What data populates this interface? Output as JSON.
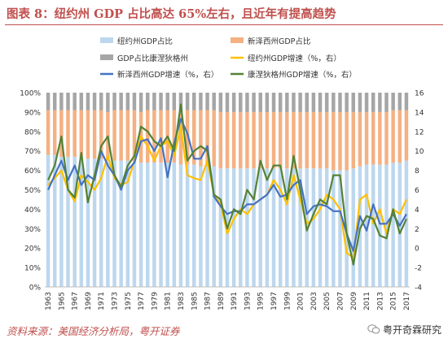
{
  "figure": {
    "title": "图表 8：纽约州 GDP 占比高达 65%左右，且近年有提高趋势",
    "source": "资料来源：美国经济分析局，粤开证券",
    "watermark": "粤开奇霖研究"
  },
  "chart_data": {
    "type": "bar",
    "stacked": true,
    "x": [
      1963,
      1964,
      1965,
      1966,
      1967,
      1968,
      1969,
      1970,
      1971,
      1972,
      1973,
      1974,
      1975,
      1976,
      1977,
      1978,
      1979,
      1980,
      1981,
      1982,
      1983,
      1984,
      1985,
      1986,
      1987,
      1988,
      1989,
      1990,
      1991,
      1992,
      1993,
      1994,
      1995,
      1996,
      1997,
      1998,
      1999,
      2000,
      2001,
      2002,
      2003,
      2004,
      2005,
      2006,
      2007,
      2008,
      2009,
      2010,
      2011,
      2012,
      2013,
      2014,
      2015,
      2016,
      2017
    ],
    "xticks": [
      "1963",
      "1965",
      "1967",
      "1969",
      "1971",
      "1973",
      "1975",
      "1977",
      "1979",
      "1981",
      "1983",
      "1985",
      "1987",
      "1989",
      "1991",
      "1993",
      "1995",
      "1997",
      "1999",
      "2001",
      "2003",
      "2005",
      "2007",
      "2009",
      "2011",
      "2013",
      "2015",
      "2017"
    ],
    "ylim_left": [
      0,
      100
    ],
    "yticks_left": [
      "0%",
      "10%",
      "20%",
      "30%",
      "40%",
      "50%",
      "60%",
      "70%",
      "80%",
      "90%",
      "100%"
    ],
    "ylim_right": [
      -4,
      16
    ],
    "yticks_right": [
      "-4",
      "-2",
      "0",
      "2",
      "4",
      "6",
      "8",
      "10",
      "12",
      "14",
      "16"
    ],
    "legend": [
      "纽约州GDP占比",
      "新泽西州GDP占比",
      "GDP占比康涅狄格州",
      "纽约州GDP增速（%，右）",
      "新泽西州GDP增速（%，右）",
      "康涅狄格州GDP增速（%，右）"
    ],
    "bars": [
      {
        "name": "纽约州GDP占比",
        "color": "#bdd7ee",
        "values": [
          68,
          68,
          67,
          67,
          67,
          67,
          66,
          66,
          66,
          65,
          65,
          65,
          65,
          65,
          64,
          64,
          64,
          64,
          64,
          64,
          63,
          63,
          63,
          62,
          62,
          62,
          61,
          61,
          61,
          61,
          61,
          61,
          61,
          61,
          61,
          61,
          61,
          61,
          61,
          61,
          61,
          61,
          61,
          60,
          60,
          60,
          61,
          62,
          63,
          63,
          63,
          63,
          64,
          64,
          65
        ]
      },
      {
        "name": "新泽西州GDP占比",
        "color": "#f4b183",
        "values": [
          23,
          23,
          24,
          24,
          24,
          24,
          25,
          25,
          25,
          25,
          26,
          26,
          26,
          26,
          26,
          27,
          27,
          27,
          27,
          27,
          28,
          28,
          28,
          29,
          29,
          29,
          29,
          29,
          29,
          29,
          29,
          29,
          29,
          29,
          29,
          29,
          29,
          29,
          29,
          29,
          29,
          29,
          29,
          30,
          30,
          30,
          29,
          28,
          27,
          27,
          27,
          27,
          27,
          27,
          26
        ]
      },
      {
        "name": "GDP占比康涅狄格州",
        "color": "#a6a6a6",
        "values": [
          9,
          9,
          9,
          9,
          9,
          9,
          9,
          9,
          9,
          10,
          9,
          9,
          9,
          9,
          10,
          9,
          9,
          9,
          9,
          9,
          9,
          9,
          9,
          9,
          9,
          9,
          10,
          10,
          10,
          10,
          10,
          10,
          10,
          10,
          10,
          10,
          10,
          10,
          10,
          10,
          10,
          10,
          10,
          10,
          10,
          10,
          10,
          10,
          10,
          10,
          10,
          10,
          9,
          9,
          9
        ]
      }
    ],
    "lines": [
      {
        "name": "纽约州GDP增速（%，右）",
        "color": "#ffc000",
        "values": [
          6.5,
          7.2,
          8.0,
          6.0,
          4.8,
          7.5,
          6.8,
          6.0,
          7.2,
          9.5,
          7.2,
          6.5,
          6.8,
          9.0,
          11.5,
          10.5,
          9.0,
          10.5,
          11.0,
          9.5,
          12.5,
          7.5,
          7.2,
          7.0,
          9.0,
          5.5,
          4.5,
          1.5,
          3.0,
          4.0,
          3.5,
          4.5,
          5.0,
          5.5,
          7.0,
          6.0,
          4.5,
          7.5,
          5.0,
          2.5,
          3.0,
          4.0,
          5.5,
          5.0,
          4.0,
          -0.5,
          -1.0,
          5.0,
          5.5,
          2.5,
          4.0,
          1.5,
          4.0,
          3.5,
          5.0
        ]
      },
      {
        "name": "新泽西州GDP增速（%，右）",
        "color": "#4472c4",
        "values": [
          6.0,
          7.5,
          9.0,
          7.0,
          8.5,
          6.5,
          7.5,
          7.0,
          10.0,
          8.5,
          7.5,
          6.0,
          8.0,
          8.8,
          11.0,
          11.2,
          10.0,
          11.3,
          7.3,
          10.8,
          13.3,
          11.8,
          9.2,
          9.2,
          10.5,
          5.3,
          4.3,
          3.5,
          3.8,
          3.8,
          4.5,
          4.5,
          5.0,
          5.5,
          6.5,
          5.3,
          5.5,
          6.5,
          7.0,
          3.5,
          4.3,
          4.5,
          4.3,
          3.8,
          3.8,
          1.5,
          -0.3,
          3.3,
          1.8,
          4.5,
          2.5,
          2.5,
          3.5,
          2.3,
          3.5
        ]
      },
      {
        "name": "康涅狄格州GDP增速（%，右）",
        "color": "#548235",
        "values": [
          7.0,
          8.5,
          11.5,
          6.0,
          5.2,
          9.8,
          4.7,
          7.5,
          10.5,
          11.5,
          7.5,
          6.3,
          8.5,
          9.5,
          12.5,
          12.0,
          11.0,
          10.5,
          11.5,
          10.0,
          14.8,
          9.0,
          10.0,
          10.5,
          10.0,
          5.5,
          5.0,
          2.0,
          4.0,
          3.5,
          6.0,
          5.0,
          9.0,
          7.0,
          8.5,
          8.5,
          5.0,
          9.5,
          6.0,
          1.8,
          3.5,
          5.0,
          4.5,
          7.5,
          7.5,
          1.5,
          -1.7,
          2.0,
          3.3,
          3.0,
          1.3,
          1.0,
          4.0,
          1.5,
          3.0
        ]
      }
    ]
  }
}
